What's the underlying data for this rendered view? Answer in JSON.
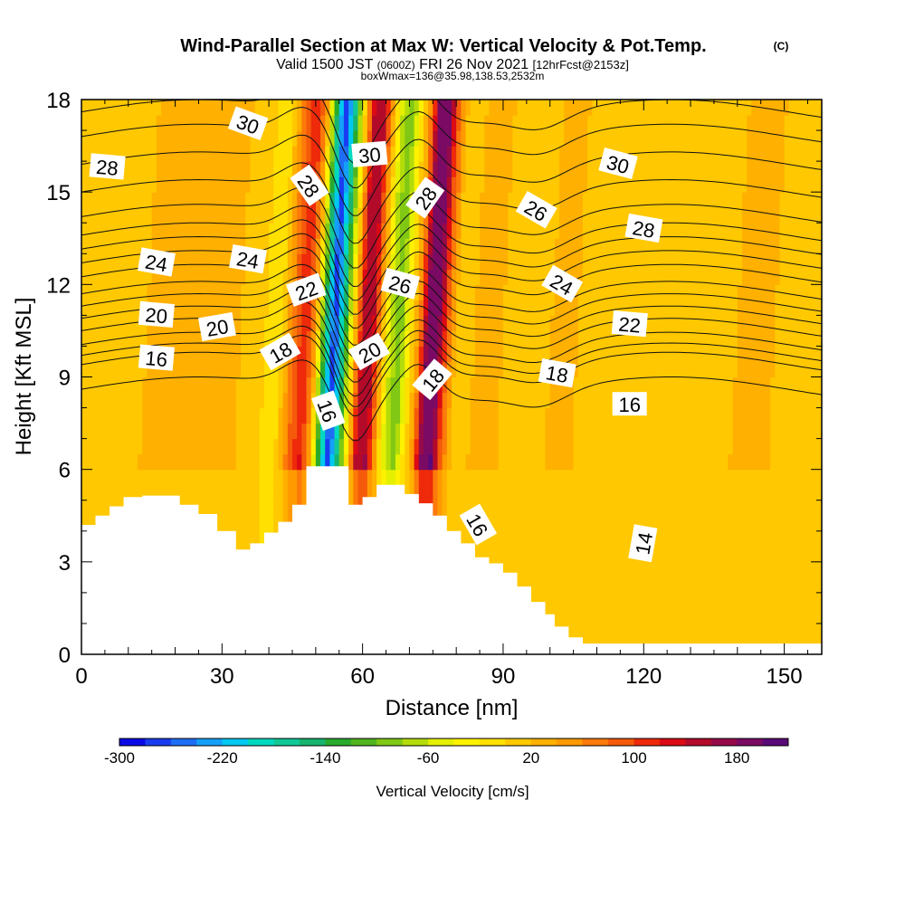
{
  "chart_data": {
    "type": "heatmap",
    "title": "Wind-Parallel Section at Max W: Vertical Velocity & Pot.Temp.",
    "title_mark": "(C)",
    "subtitle_valid": "Valid 1500 JST",
    "subtitle_utc": "(0600Z)",
    "subtitle_date": "FRI 26 Nov 2021",
    "subtitle_fcst": "[12hrFcst@2153z]",
    "subtitle_box": "boxWmax=136@35.98,138.53,2532m",
    "xlabel": "Distance [nm]",
    "ylabel": "Height [Kft MSL]",
    "xlim": [
      0,
      158
    ],
    "ylim": [
      0,
      18
    ],
    "xticks": [
      "0",
      "30",
      "60",
      "90",
      "120",
      "150"
    ],
    "yticks": [
      "0",
      "3",
      "6",
      "9",
      "12",
      "15",
      "18"
    ],
    "colorbar": {
      "label": "Vertical Velocity [cm/s]",
      "min": -300,
      "max": 220,
      "step": 20,
      "tick_labels": [
        "-300",
        "-220",
        "-140",
        "-60",
        "20",
        "100",
        "180"
      ],
      "colors": [
        "#0a0ae6",
        "#1a3cf0",
        "#1e6ef5",
        "#14a0f8",
        "#00c8f0",
        "#00d8c0",
        "#10c896",
        "#16b46e",
        "#28aa2c",
        "#50b41e",
        "#80c814",
        "#b4dc0a",
        "#e4f000",
        "#fff200",
        "#ffe000",
        "#ffc800",
        "#ffb000",
        "#ff9a00",
        "#fc7a0a",
        "#f55a0a",
        "#ee2a0a",
        "#dc0a14",
        "#b40a2a",
        "#960a4a",
        "#7a0a64",
        "#5a0a78"
      ]
    },
    "vertical_velocity_columns": {
      "x": [
        0,
        4,
        8,
        12,
        16,
        20,
        24,
        28,
        32,
        36,
        40,
        44,
        46,
        48,
        50,
        52,
        54,
        56,
        58,
        60,
        62,
        64,
        66,
        68,
        70,
        72,
        74,
        76,
        78,
        80,
        84,
        88,
        92,
        96,
        100,
        104,
        110,
        116,
        122,
        128,
        134,
        140,
        146,
        152,
        158
      ],
      "w": [
        10,
        0,
        10,
        20,
        30,
        25,
        25,
        35,
        20,
        10,
        -20,
        90,
        120,
        40,
        -140,
        -280,
        -160,
        -10,
        140,
        160,
        40,
        -60,
        -100,
        -20,
        50,
        190,
        200,
        90,
        20,
        10,
        30,
        20,
        10,
        5,
        30,
        20,
        0,
        5,
        15,
        5,
        10,
        25,
        20,
        15,
        20
      ]
    },
    "terrain_kft": {
      "x": [
        0,
        3,
        6,
        9,
        13,
        17,
        21,
        25,
        29,
        33,
        36,
        39,
        42,
        45,
        48,
        51,
        54,
        57,
        60,
        63,
        66,
        69,
        72,
        75,
        78,
        81,
        84,
        87,
        90,
        93,
        96,
        99,
        101,
        104,
        107,
        110,
        120,
        130,
        140,
        150,
        158
      ],
      "h": [
        4.2,
        4.5,
        4.8,
        5.1,
        5.15,
        5.15,
        4.85,
        4.55,
        4.0,
        3.4,
        3.6,
        3.95,
        4.3,
        4.85,
        6.1,
        6.1,
        6.1,
        4.85,
        5.1,
        5.5,
        5.5,
        5.2,
        4.9,
        4.5,
        4.0,
        3.6,
        3.15,
        2.95,
        2.65,
        2.2,
        1.7,
        1.3,
        0.9,
        0.55,
        0.35,
        0.35,
        0.35,
        0.35,
        0.35,
        0.35,
        0.35
      ]
    },
    "potential_temperature_lines": [
      {
        "level": "16",
        "y_base": 8.6
      },
      {
        "level": "17",
        "y_base": 9.4
      },
      {
        "level": "18",
        "y_base": 9.7
      },
      {
        "level": "19",
        "y_base": 10.05
      },
      {
        "level": "20",
        "y_base": 10.5
      },
      {
        "level": "21",
        "y_base": 10.9
      },
      {
        "level": "22",
        "y_base": 11.3
      },
      {
        "level": "23",
        "y_base": 11.7
      },
      {
        "level": "24",
        "y_base": 12.25
      },
      {
        "level": "25",
        "y_base": 12.7
      },
      {
        "level": "26",
        "y_base": 13.15
      },
      {
        "level": "27",
        "y_base": 13.6
      },
      {
        "level": "28",
        "y_base": 14.2
      },
      {
        "level": "29",
        "y_base": 15.0
      },
      {
        "level": "30",
        "y_base": 15.9
      },
      {
        "level": "31",
        "y_base": 16.8
      },
      {
        "level": "32",
        "y_base": 17.6
      }
    ],
    "contour_labels": [
      {
        "text": "28",
        "x": 5.5,
        "y": 15.8,
        "rot": 5
      },
      {
        "text": "30",
        "x": 35.5,
        "y": 17.2,
        "rot": 20
      },
      {
        "text": "28",
        "x": 48.5,
        "y": 15.2,
        "rot": 55
      },
      {
        "text": "30",
        "x": 61.5,
        "y": 16.2,
        "rot": -5
      },
      {
        "text": "28",
        "x": 73.5,
        "y": 14.8,
        "rot": -55
      },
      {
        "text": "30",
        "x": 114.5,
        "y": 15.9,
        "rot": 15
      },
      {
        "text": "24",
        "x": 16.0,
        "y": 12.7,
        "rot": 10
      },
      {
        "text": "24",
        "x": 35.5,
        "y": 12.8,
        "rot": 10
      },
      {
        "text": "26",
        "x": 97.0,
        "y": 14.4,
        "rot": 30
      },
      {
        "text": "28",
        "x": 120.0,
        "y": 13.8,
        "rot": 10
      },
      {
        "text": "22",
        "x": 48.0,
        "y": 11.8,
        "rot": -20
      },
      {
        "text": "26",
        "x": 68.0,
        "y": 12.0,
        "rot": 15
      },
      {
        "text": "24",
        "x": 102.5,
        "y": 12.0,
        "rot": 30
      },
      {
        "text": "20",
        "x": 16.0,
        "y": 11.0,
        "rot": 5
      },
      {
        "text": "20",
        "x": 29.0,
        "y": 10.6,
        "rot": -10
      },
      {
        "text": "22",
        "x": 117.0,
        "y": 10.7,
        "rot": 5
      },
      {
        "text": "16",
        "x": 16.0,
        "y": 9.6,
        "rot": 5
      },
      {
        "text": "18",
        "x": 42.5,
        "y": 9.8,
        "rot": -30
      },
      {
        "text": "20",
        "x": 61.5,
        "y": 9.8,
        "rot": -30
      },
      {
        "text": "18",
        "x": 101.5,
        "y": 9.1,
        "rot": 10
      },
      {
        "text": "18",
        "x": 75.0,
        "y": 8.9,
        "rot": -50
      },
      {
        "text": "16",
        "x": 117.0,
        "y": 8.1,
        "rot": 0
      },
      {
        "text": "16",
        "x": 52.5,
        "y": 7.9,
        "rot": 70
      },
      {
        "text": "16",
        "x": 84.5,
        "y": 4.2,
        "rot": 60
      },
      {
        "text": "14",
        "x": 120.0,
        "y": 3.6,
        "rot": -80
      }
    ],
    "grid": false,
    "legend": "colorbar-bottom"
  }
}
